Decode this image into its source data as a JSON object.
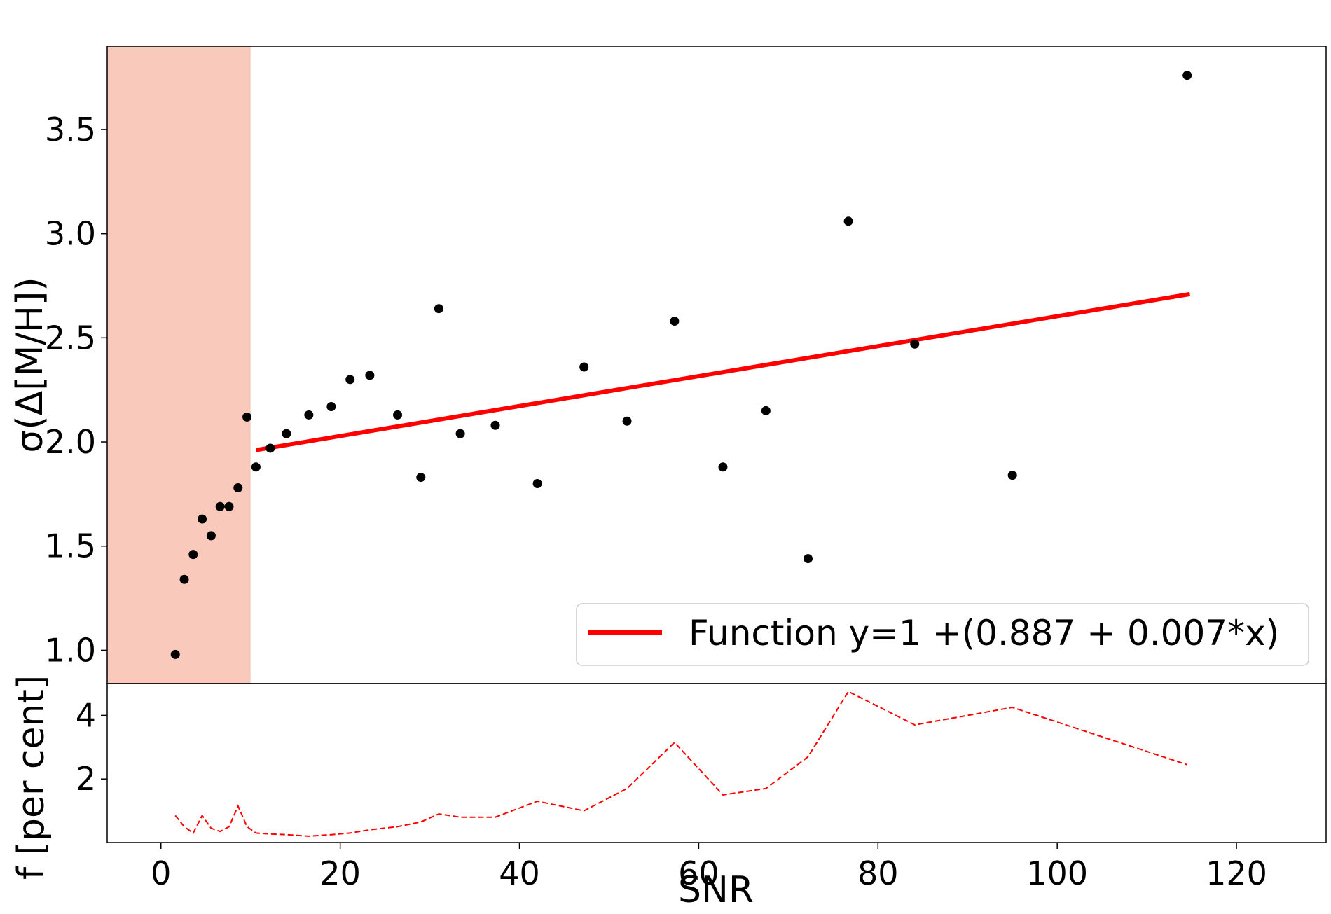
{
  "chart_data": [
    {
      "type": "scatter",
      "panel": "top",
      "xlabel": "",
      "ylabel": "σ(Δ[M/H])",
      "xlim": [
        -6,
        130
      ],
      "ylim": [
        0.84,
        3.9
      ],
      "yticks": [
        1.0,
        1.5,
        2.0,
        2.5,
        3.0,
        3.5
      ],
      "ytick_labels": [
        "1.0",
        "1.5",
        "2.0",
        "2.5",
        "3.0",
        "3.5"
      ],
      "grid": false,
      "shaded_region": {
        "x_from": -6,
        "x_to": 10,
        "color": "#f9c9bb"
      },
      "series": [
        {
          "type": "scatter",
          "color": "#000000",
          "x": [
            1.6,
            2.6,
            3.6,
            4.6,
            5.6,
            6.6,
            7.6,
            8.6,
            9.6,
            10.6,
            12.2,
            14.0,
            16.5,
            19.0,
            21.1,
            23.3,
            26.4,
            29.0,
            31.0,
            33.4,
            37.3,
            42.0,
            47.2,
            52.0,
            57.3,
            62.7,
            67.5,
            72.2,
            76.7,
            84.1,
            95.0,
            114.5
          ],
          "y": [
            0.98,
            1.34,
            1.46,
            1.63,
            1.55,
            1.69,
            1.69,
            1.78,
            2.12,
            1.88,
            1.97,
            2.04,
            2.13,
            2.17,
            2.3,
            2.32,
            2.13,
            1.83,
            2.64,
            2.04,
            2.08,
            1.8,
            2.36,
            2.1,
            2.58,
            1.88,
            2.15,
            1.44,
            3.06,
            2.47,
            1.84,
            3.76
          ]
        },
        {
          "type": "line",
          "name": "Function y=1  +(0.887 + 0.007*x)",
          "color": "#ff0000",
          "x": [
            10.6,
            114.8
          ],
          "y": [
            1.961,
            2.71
          ]
        }
      ],
      "legend": {
        "placement": "lower-right",
        "entries": [
          "Function y=1  +(0.887 + 0.007*x)"
        ]
      }
    },
    {
      "type": "line",
      "panel": "bottom",
      "xlabel": "SNR",
      "ylabel": "f [per cent]",
      "xlim": [
        -6,
        130
      ],
      "ylim": [
        0.0,
        5.0
      ],
      "xticks": [
        0,
        20,
        40,
        60,
        80,
        100,
        120
      ],
      "xtick_labels": [
        "0",
        "20",
        "40",
        "60",
        "80",
        "100",
        "120"
      ],
      "yticks": [
        2,
        4
      ],
      "ytick_labels": [
        "2",
        "4"
      ],
      "grid": false,
      "series": [
        {
          "type": "line",
          "style": "dashed",
          "color": "#ff0000",
          "x": [
            1.6,
            2.6,
            3.6,
            4.6,
            5.6,
            6.6,
            7.6,
            8.6,
            9.6,
            10.6,
            12.2,
            14.0,
            16.5,
            19.0,
            21.1,
            23.3,
            26.4,
            29.0,
            31.0,
            33.4,
            37.3,
            42.0,
            47.2,
            52.0,
            57.3,
            62.7,
            67.5,
            72.2,
            76.7,
            84.1,
            95.0,
            114.5
          ],
          "y": [
            0.85,
            0.5,
            0.3,
            0.85,
            0.45,
            0.35,
            0.5,
            1.15,
            0.5,
            0.3,
            0.27,
            0.25,
            0.2,
            0.25,
            0.3,
            0.4,
            0.5,
            0.65,
            0.9,
            0.8,
            0.8,
            1.3,
            1.0,
            1.7,
            3.15,
            1.5,
            1.7,
            2.7,
            4.75,
            3.7,
            4.25,
            2.45
          ]
        }
      ]
    }
  ]
}
